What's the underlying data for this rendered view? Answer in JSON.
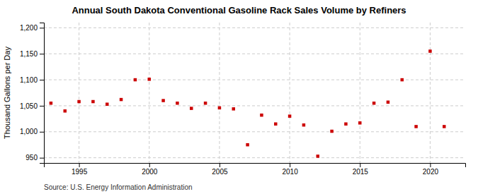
{
  "chart_data": {
    "type": "scatter",
    "title": "Annual South Dakota Conventional Gasoline Rack Sales Volume by Refiners",
    "ylabel": "Thousand Gallons per Day",
    "source": "Source: U.S. Energy Information Administration",
    "x": [
      1993,
      1994,
      1995,
      1996,
      1997,
      1998,
      1999,
      2000,
      2001,
      2002,
      2003,
      2004,
      2005,
      2006,
      2007,
      2008,
      2009,
      2010,
      2011,
      2012,
      2013,
      2014,
      2015,
      2016,
      2017,
      2018,
      2019,
      2020,
      2021
    ],
    "values": [
      1055,
      1040,
      1058,
      1058,
      1053,
      1062,
      1100,
      1101,
      1060,
      1055,
      1045,
      1055,
      1046,
      1044,
      975,
      1032,
      1015,
      1030,
      1013,
      953,
      1001,
      1015,
      1017,
      1055,
      1057,
      1100,
      1010,
      1155,
      1010
    ],
    "color": "#cc0000",
    "marker": "square",
    "grid": true,
    "xlim": [
      1992.5,
      2022.5
    ],
    "ylim": [
      940,
      1210
    ],
    "xticks": [
      1995,
      2000,
      2005,
      2010,
      2015,
      2020
    ],
    "yticks": [
      950,
      {
        "value": 1000,
        "label": "1,000"
      },
      {
        "value": 1050,
        "label": "1,050"
      },
      {
        "value": 1100,
        "label": "1,100"
      },
      {
        "value": 1150,
        "label": "1,150"
      },
      {
        "value": 1200,
        "label": "1,200"
      }
    ]
  }
}
